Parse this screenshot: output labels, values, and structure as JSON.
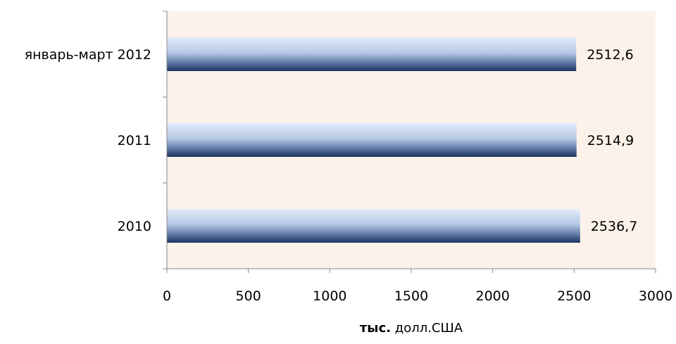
{
  "chart_data": {
    "type": "bar",
    "orientation": "horizontal",
    "categories": [
      "январь-март 2012",
      "2011",
      "2010"
    ],
    "values": [
      2512.6,
      2514.9,
      2536.7
    ],
    "value_labels": [
      "2512,6",
      "2514,9",
      "2536,7"
    ],
    "xlim": [
      0,
      3000
    ],
    "xticks": [
      0,
      500,
      1000,
      1500,
      2000,
      2500,
      3000
    ],
    "xtick_labels": [
      "0",
      "500",
      "1000",
      "1500",
      "2000",
      "2500",
      "3000"
    ],
    "xlabel_bold": "тыс.",
    "xlabel_rest": " долл.США",
    "grid": false,
    "legend": "none",
    "colors": {
      "plot_background": "#fdf2ea",
      "bar_light": "#dfe8f8",
      "bar_mid": "#a9bddc",
      "bar_dark": "#1d3763",
      "axis": "#888888"
    }
  }
}
